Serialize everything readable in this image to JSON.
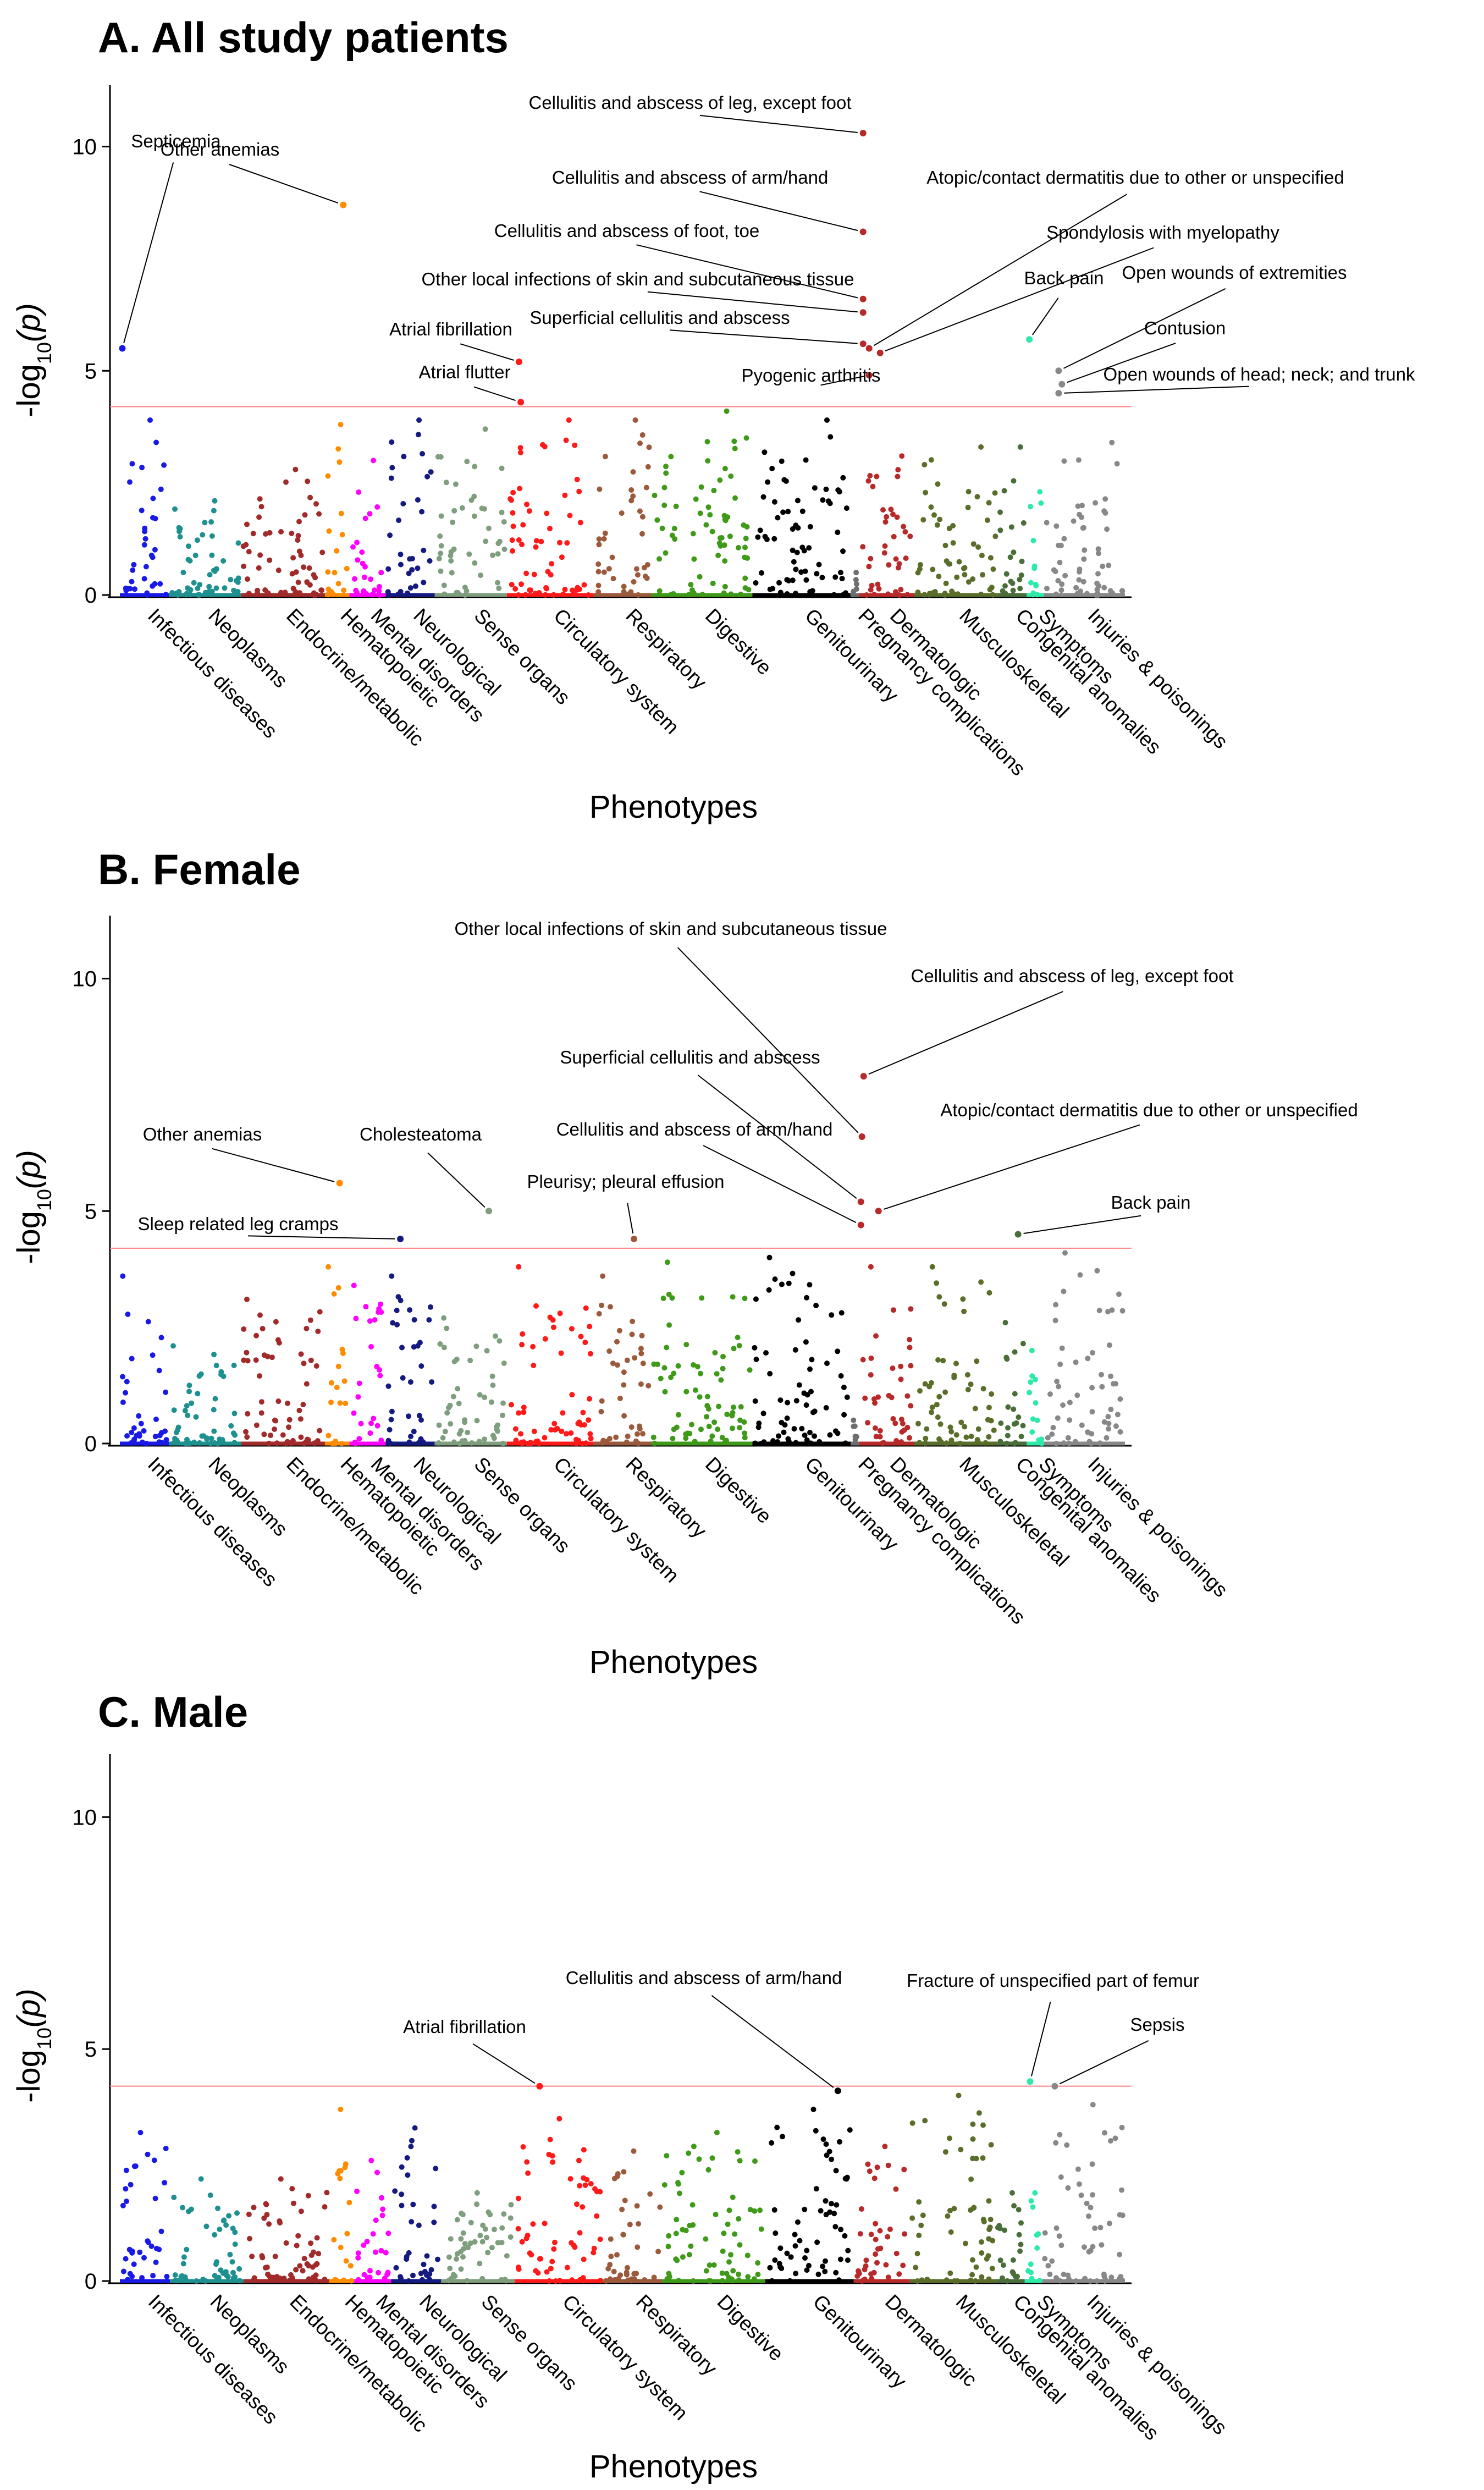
{
  "figure": {
    "ylabel_prefix": "-log",
    "ylabel_sub": "10",
    "ylabel_suffix": "(p)",
    "xlabel": "Phenotypes"
  },
  "category_colors": {
    "Infectious diseases": "#1a1ae6",
    "Neoplasms": "#1f9090",
    "Endocrine/metabolic": "#a12a2a",
    "Hematopoietic": "#ff8c00",
    "Mental disorders": "#ff00ff",
    "Neurological": "#141a80",
    "Sense organs": "#7e9e7e",
    "Circulatory system": "#ff1a1a",
    "Respiratory": "#9c5a3c",
    "Digestive": "#3f9a1a",
    "Genitourinary": "#000000",
    "Pregnancy complications": "#6e6e6e",
    "Dermatologic": "#b82a2a",
    "Musculoskeletal": "#5a6e2a",
    "Congenital anomalies": "#4a6e3a",
    "Symptoms": "#2eeaa8",
    "Injuries & poisonings": "#888888"
  },
  "annotation_point_color": "#cc1f1f",
  "threshold_color": "#ff8080",
  "chart_data": [
    {
      "type": "scatter",
      "id": "A",
      "title": "A. All study patients",
      "xlabel": "Phenotypes",
      "ylabel": "-log10(p)",
      "ylim": [
        0,
        11
      ],
      "yticks": [
        0,
        5,
        10
      ],
      "threshold": 4.2,
      "categories": [
        {
          "name": "Infectious diseases",
          "n": 34,
          "max": 3.9
        },
        {
          "name": "Neoplasms",
          "n": 50,
          "max": 2.1
        },
        {
          "name": "Endocrine/metabolic",
          "n": 58,
          "max": 2.8
        },
        {
          "name": "Hematopoietic",
          "n": 17,
          "max": 3.8
        },
        {
          "name": "Mental disorders",
          "n": 25,
          "max": 3.0
        },
        {
          "name": "Neurological",
          "n": 34,
          "max": 3.9
        },
        {
          "name": "Sense organs",
          "n": 50,
          "max": 3.7
        },
        {
          "name": "Circulatory system",
          "n": 60,
          "max": 3.9
        },
        {
          "name": "Respiratory",
          "n": 40,
          "max": 3.9
        },
        {
          "name": "Digestive",
          "n": 70,
          "max": 4.1
        },
        {
          "name": "Genitourinary",
          "n": 68,
          "max": 3.9
        },
        {
          "name": "Pregnancy complications",
          "n": 6,
          "max": 0.5
        },
        {
          "name": "Dermatologic",
          "n": 38,
          "max": 3.1
        },
        {
          "name": "Musculoskeletal",
          "n": 58,
          "max": 3.3
        },
        {
          "name": "Congenital anomalies",
          "n": 20,
          "max": 3.3
        },
        {
          "name": "Symptoms",
          "n": 12,
          "max": 2.3
        },
        {
          "name": "Injuries & poisonings",
          "n": 56,
          "max": 3.4
        }
      ],
      "category_labels": [
        "Infectious diseases",
        "Neoplasms",
        "Endocrine/metabolic",
        "Hematopoietic",
        "Mental disorders",
        "Neurological",
        "Sense organs",
        "Circulatory system",
        "Respiratory",
        "Digestive",
        "Genitourinary",
        "Pregnancy complications",
        "Dermatologic",
        "Musculoskeletal",
        "Congenital anomalies",
        "Symptoms",
        "Injuries & poisonings"
      ],
      "annotations": [
        {
          "label": "Septicemia",
          "category": "Infectious diseases",
          "x_frac": 0.05,
          "y": 5.5
        },
        {
          "label": "Other anemias",
          "category": "Hematopoietic",
          "x_frac": 0.75,
          "y": 8.7
        },
        {
          "label": "Atrial fibrillation",
          "category": "Circulatory system",
          "x_frac": 0.14,
          "y": 5.2
        },
        {
          "label": "Atrial flutter",
          "category": "Circulatory system",
          "x_frac": 0.16,
          "y": 4.3
        },
        {
          "label": "Cellulitis and abscess of leg, except foot",
          "category": "Dermatologic",
          "x_frac": 0.07,
          "y": 10.3
        },
        {
          "label": "Cellulitis and abscess of arm/hand",
          "category": "Dermatologic",
          "x_frac": 0.07,
          "y": 8.1
        },
        {
          "label": "Cellulitis and abscess of foot, toe",
          "category": "Dermatologic",
          "x_frac": 0.07,
          "y": 6.6
        },
        {
          "label": "Other local infections of skin and subcutaneous tissue",
          "category": "Dermatologic",
          "x_frac": 0.07,
          "y": 6.3
        },
        {
          "label": "Superficial cellulitis and abscess",
          "category": "Dermatologic",
          "x_frac": 0.07,
          "y": 5.6
        },
        {
          "label": "Atopic/contact dermatitis due to other or unspecified",
          "category": "Dermatologic",
          "x_frac": 0.18,
          "y": 5.5
        },
        {
          "label": "Spondylosis with myelopathy",
          "category": "Dermatologic",
          "x_frac": 0.38,
          "y": 5.4
        },
        {
          "label": "Pyogenic arthritis",
          "category": "Dermatologic",
          "x_frac": 0.18,
          "y": 4.9
        },
        {
          "label": "Back pain",
          "category": "Symptoms",
          "x_frac": 0.15,
          "y": 5.7
        },
        {
          "label": "Open wounds of extremities",
          "category": "Injuries & poisonings",
          "x_frac": 0.18,
          "y": 5.0
        },
        {
          "label": "Contusion",
          "category": "Injuries & poisonings",
          "x_frac": 0.22,
          "y": 4.7
        },
        {
          "label": "Open wounds of head; neck; and trunk",
          "category": "Injuries & poisonings",
          "x_frac": 0.18,
          "y": 4.5
        }
      ]
    },
    {
      "type": "scatter",
      "id": "B",
      "title": "B. Female",
      "xlabel": "Phenotypes",
      "ylabel": "-log10(p)",
      "ylim": [
        0,
        11
      ],
      "yticks": [
        0,
        5,
        10
      ],
      "threshold": 4.2,
      "categories": [
        {
          "name": "Infectious diseases",
          "n": 34,
          "max": 3.6
        },
        {
          "name": "Neoplasms",
          "n": 50,
          "max": 2.1
        },
        {
          "name": "Endocrine/metabolic",
          "n": 58,
          "max": 3.1
        },
        {
          "name": "Hematopoietic",
          "n": 17,
          "max": 3.8
        },
        {
          "name": "Mental disorders",
          "n": 25,
          "max": 3.4
        },
        {
          "name": "Neurological",
          "n": 34,
          "max": 3.6
        },
        {
          "name": "Sense organs",
          "n": 50,
          "max": 2.7
        },
        {
          "name": "Circulatory system",
          "n": 60,
          "max": 3.8
        },
        {
          "name": "Respiratory",
          "n": 40,
          "max": 3.6
        },
        {
          "name": "Digestive",
          "n": 70,
          "max": 3.9
        },
        {
          "name": "Genitourinary",
          "n": 68,
          "max": 4.0
        },
        {
          "name": "Pregnancy complications",
          "n": 6,
          "max": 0.5
        },
        {
          "name": "Dermatologic",
          "n": 38,
          "max": 3.8
        },
        {
          "name": "Musculoskeletal",
          "n": 58,
          "max": 3.8
        },
        {
          "name": "Congenital anomalies",
          "n": 20,
          "max": 2.6
        },
        {
          "name": "Symptoms",
          "n": 12,
          "max": 2.0
        },
        {
          "name": "Injuries & poisonings",
          "n": 56,
          "max": 4.1
        }
      ],
      "category_labels": [
        "Infectious diseases",
        "Neoplasms",
        "Endocrine/metabolic",
        "Hematopoietic",
        "Mental disorders",
        "Neurological",
        "Sense organs",
        "Circulatory system",
        "Respiratory",
        "Digestive",
        "Genitourinary",
        "Pregnancy complications",
        "Dermatologic",
        "Musculoskeletal",
        "Congenital anomalies",
        "Symptoms",
        "Injuries & poisonings"
      ],
      "annotations": [
        {
          "label": "Other anemias",
          "category": "Hematopoietic",
          "x_frac": 0.6,
          "y": 5.6
        },
        {
          "label": "Sleep related leg cramps",
          "category": "Neurological",
          "x_frac": 0.3,
          "y": 4.4
        },
        {
          "label": "Cholesteatoma",
          "category": "Sense organs",
          "x_frac": 0.75,
          "y": 5.0
        },
        {
          "label": "Pleurisy; pleural effusion",
          "category": "Respiratory",
          "x_frac": 0.7,
          "y": 4.4
        },
        {
          "label": "Other local infections of skin and subcutaneous tissue",
          "category": "Dermatologic",
          "x_frac": 0.05,
          "y": 6.6
        },
        {
          "label": "Cellulitis and abscess of leg, except foot",
          "category": "Dermatologic",
          "x_frac": 0.08,
          "y": 7.9
        },
        {
          "label": "Superficial cellulitis and abscess",
          "category": "Dermatologic",
          "x_frac": 0.03,
          "y": 5.2
        },
        {
          "label": "Cellulitis and abscess of arm/hand",
          "category": "Dermatologic",
          "x_frac": 0.03,
          "y": 4.7
        },
        {
          "label": "Atopic/contact dermatitis due to other or unspecified",
          "category": "Dermatologic",
          "x_frac": 0.35,
          "y": 5.0
        },
        {
          "label": "Back pain",
          "category": "Congenital anomalies",
          "x_frac": 0.7,
          "y": 4.5
        }
      ]
    },
    {
      "type": "scatter",
      "id": "C",
      "title": "C. Male",
      "xlabel": "Phenotypes",
      "ylabel": "-log10(p)",
      "ylim": [
        0,
        11
      ],
      "yticks": [
        0,
        5,
        10
      ],
      "threshold": 4.2,
      "categories": [
        {
          "name": "Infectious diseases",
          "n": 34,
          "max": 3.2
        },
        {
          "name": "Neoplasms",
          "n": 50,
          "max": 2.2
        },
        {
          "name": "Endocrine/metabolic",
          "n": 58,
          "max": 2.2
        },
        {
          "name": "Hematopoietic",
          "n": 17,
          "max": 3.7
        },
        {
          "name": "Mental disorders",
          "n": 25,
          "max": 2.6
        },
        {
          "name": "Neurological",
          "n": 34,
          "max": 3.3
        },
        {
          "name": "Sense organs",
          "n": 50,
          "max": 1.9
        },
        {
          "name": "Circulatory system",
          "n": 60,
          "max": 3.5
        },
        {
          "name": "Respiratory",
          "n": 40,
          "max": 2.8
        },
        {
          "name": "Digestive",
          "n": 70,
          "max": 3.2
        },
        {
          "name": "Genitourinary",
          "n": 60,
          "max": 3.7
        },
        {
          "name": "Dermatologic",
          "n": 38,
          "max": 2.9
        },
        {
          "name": "Musculoskeletal",
          "n": 58,
          "max": 4.0
        },
        {
          "name": "Congenital anomalies",
          "n": 20,
          "max": 1.9
        },
        {
          "name": "Symptoms",
          "n": 12,
          "max": 1.9
        },
        {
          "name": "Injuries & poisonings",
          "n": 56,
          "max": 3.8
        }
      ],
      "category_labels": [
        "Infectious diseases",
        "Neoplasms",
        "Endocrine/metabolic",
        "Hematopoietic",
        "Mental disorders",
        "Neurological",
        "Sense organs",
        "Circulatory system",
        "Respiratory",
        "Digestive",
        "Genitourinary",
        "Dermatologic",
        "Musculoskeletal",
        "Congenital anomalies",
        "Symptoms",
        "Injuries & poisonings"
      ],
      "annotations": [
        {
          "label": "Atrial fibrillation",
          "category": "Circulatory system",
          "x_frac": 0.28,
          "y": 4.2
        },
        {
          "label": "Cellulitis and abscess of arm/hand",
          "category": "Genitourinary",
          "x_frac": 0.82,
          "y": 4.1
        },
        {
          "label": "Fracture of unspecified part of femur",
          "category": "Symptoms",
          "x_frac": 0.3,
          "y": 4.3
        },
        {
          "label": "Sepsis",
          "category": "Injuries & poisonings",
          "x_frac": 0.15,
          "y": 4.2
        }
      ]
    }
  ]
}
